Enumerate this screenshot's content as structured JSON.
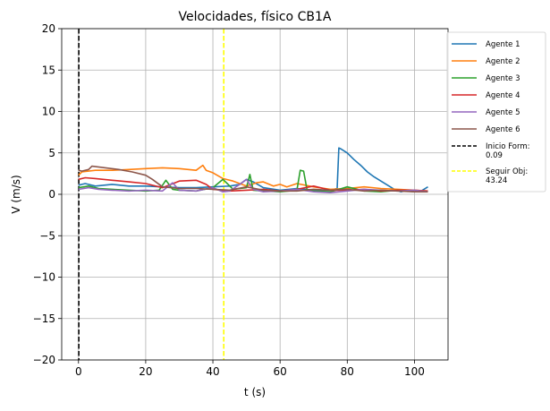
{
  "chart_data": {
    "type": "line",
    "title": "Velocidades, físico CB1A",
    "xlabel": "t (s)",
    "ylabel": "V (m/s)",
    "xlim": [
      -5,
      110
    ],
    "ylim": [
      -20,
      20
    ],
    "xticks": [
      0,
      20,
      40,
      60,
      80,
      100
    ],
    "yticks": [
      -20,
      -15,
      -10,
      -5,
      0,
      5,
      10,
      15,
      20
    ],
    "xtick_labels": [
      "0",
      "20",
      "40",
      "60",
      "80",
      "100"
    ],
    "ytick_labels": [
      "−20",
      "−15",
      "−10",
      "−5",
      "0",
      "5",
      "10",
      "15",
      "20"
    ],
    "grid": true,
    "legend_position": "right, outside plot area",
    "series": [
      {
        "name": "Agente 1",
        "color": "#1f77b4",
        "x": [
          0,
          2,
          5,
          10,
          15,
          20,
          25,
          30,
          35,
          40,
          45,
          48,
          50,
          52,
          55,
          60,
          65,
          70,
          75,
          77,
          77.5,
          78,
          80,
          82,
          84,
          86,
          88,
          90,
          92,
          94,
          96,
          98,
          100,
          102,
          104
        ],
        "y": [
          1.1,
          1.3,
          1.0,
          1.2,
          1.0,
          1.0,
          0.9,
          0.8,
          0.8,
          0.9,
          1.0,
          1.2,
          1.8,
          1.5,
          0.8,
          0.5,
          0.7,
          0.5,
          0.5,
          0.7,
          5.6,
          5.5,
          5.0,
          4.2,
          3.5,
          2.7,
          2.1,
          1.6,
          1.1,
          0.6,
          0.3,
          0.5,
          0.3,
          0.4,
          0.9
        ]
      },
      {
        "name": "Agente 2",
        "color": "#ff7f0e",
        "x": [
          0,
          1,
          5,
          10,
          15,
          20,
          25,
          30,
          35,
          37,
          38,
          40,
          43,
          46,
          50,
          53,
          55,
          58,
          60,
          62,
          65,
          70,
          75,
          80,
          85,
          90,
          95,
          100,
          104
        ],
        "y": [
          2.3,
          2.7,
          2.9,
          2.9,
          3.0,
          3.1,
          3.2,
          3.1,
          2.9,
          3.5,
          2.9,
          2.6,
          1.9,
          1.6,
          1.0,
          1.4,
          1.5,
          1.0,
          1.2,
          0.9,
          1.3,
          0.9,
          0.6,
          0.7,
          0.9,
          0.7,
          0.6,
          0.5,
          0.4
        ]
      },
      {
        "name": "Agente 3",
        "color": "#2ca02c",
        "x": [
          0,
          3,
          6,
          10,
          15,
          20,
          24,
          26,
          28,
          30,
          35,
          40,
          43,
          46,
          50,
          51,
          52,
          55,
          60,
          65,
          66,
          67,
          68,
          70,
          75,
          80,
          85,
          90,
          95,
          100,
          104
        ],
        "y": [
          0.8,
          1.0,
          0.7,
          0.6,
          0.5,
          0.4,
          0.5,
          1.7,
          0.6,
          0.5,
          0.4,
          0.8,
          1.8,
          0.6,
          0.8,
          2.4,
          0.5,
          0.4,
          0.3,
          0.5,
          2.9,
          2.8,
          0.6,
          0.4,
          0.3,
          0.9,
          0.4,
          0.3,
          0.5,
          0.3,
          0.3
        ]
      },
      {
        "name": "Agente 4",
        "color": "#d62728",
        "x": [
          0,
          2,
          5,
          10,
          15,
          20,
          25,
          30,
          35,
          38,
          40,
          45,
          50,
          55,
          60,
          65,
          70,
          75,
          80,
          85,
          90,
          95,
          100,
          104
        ],
        "y": [
          1.8,
          2.0,
          1.9,
          1.7,
          1.5,
          1.3,
          0.8,
          1.6,
          1.7,
          1.2,
          0.6,
          0.4,
          0.5,
          0.6,
          0.4,
          0.6,
          1.0,
          0.5,
          0.5,
          0.6,
          0.4,
          0.5,
          0.5,
          0.4
        ]
      },
      {
        "name": "Agente 5",
        "color": "#9467bd",
        "x": [
          0,
          3,
          6,
          10,
          15,
          20,
          25,
          28,
          30,
          35,
          40,
          43,
          45,
          48,
          50,
          52,
          55,
          60,
          65,
          70,
          75,
          80,
          85,
          90,
          95,
          100,
          104
        ],
        "y": [
          0.6,
          0.8,
          0.6,
          0.5,
          0.4,
          0.5,
          0.4,
          1.4,
          0.5,
          0.4,
          0.8,
          0.3,
          0.4,
          1.2,
          1.8,
          0.6,
          0.3,
          0.4,
          0.6,
          0.3,
          0.2,
          0.4,
          0.6,
          0.5,
          0.4,
          0.5,
          0.3
        ]
      },
      {
        "name": "Agente 6",
        "color": "#8c564b",
        "x": [
          0,
          1,
          3,
          4,
          8,
          12,
          16,
          20,
          22,
          25,
          30,
          35,
          40,
          45,
          50,
          55,
          60,
          65,
          70,
          75,
          80,
          85,
          90,
          95,
          100,
          104
        ],
        "y": [
          2.9,
          2.8,
          3.0,
          3.4,
          3.2,
          3.0,
          2.7,
          2.3,
          1.8,
          0.9,
          0.7,
          0.7,
          0.6,
          0.5,
          0.9,
          0.5,
          0.4,
          0.4,
          0.6,
          0.5,
          0.6,
          0.4,
          0.5,
          0.4,
          0.3,
          0.3
        ]
      }
    ],
    "vlines": [
      {
        "name": "Inicio Form:\n0.09",
        "x": 0.09,
        "color": "#000000",
        "style": "dashed"
      },
      {
        "name": "Seguir Obj:\n43.24",
        "x": 43.24,
        "color": "#ffff00",
        "style": "dashed"
      }
    ]
  }
}
